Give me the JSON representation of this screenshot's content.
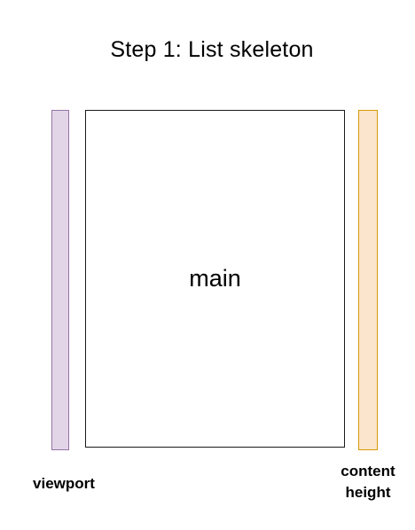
{
  "diagram": {
    "title": "Step 1: List skeleton",
    "main_label": "main",
    "viewport_label": "viewport",
    "content_label_lines": [
      "content",
      "height"
    ],
    "colors": {
      "viewport_fill": "#e1d5e7",
      "viewport_stroke": "#9673a6",
      "content_fill": "#fce5cd",
      "content_stroke": "#d79b00",
      "main_stroke": "#1a1a1a"
    }
  }
}
